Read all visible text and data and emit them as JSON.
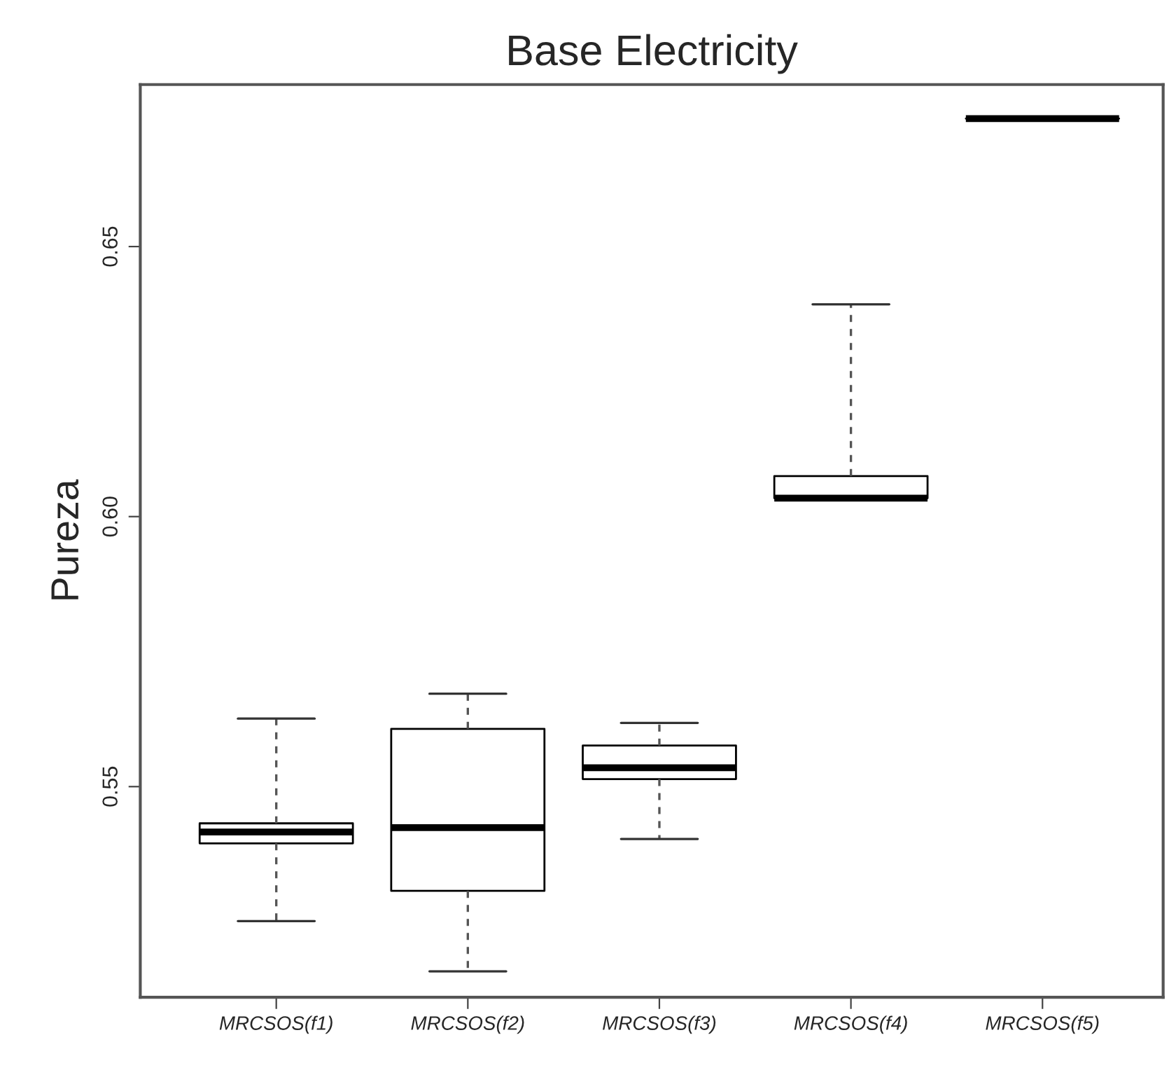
{
  "chart_data": {
    "type": "box",
    "title": "Base Electricity",
    "ylabel": "Pureza",
    "categories": [
      "MRCSOS(f1)",
      "MRCSOS(f2)",
      "MRCSOS(f3)",
      "MRCSOS(f4)",
      "MRCSOS(f5)"
    ],
    "boxes": [
      {
        "low": 0.5251,
        "q1": 0.5395,
        "median": 0.5416,
        "q3": 0.5432,
        "high": 0.5626
      },
      {
        "low": 0.5158,
        "q1": 0.5307,
        "median": 0.5424,
        "q3": 0.5607,
        "high": 0.5672
      },
      {
        "low": 0.5403,
        "q1": 0.5514,
        "median": 0.5535,
        "q3": 0.5576,
        "high": 0.5618
      },
      {
        "low": 0.6034,
        "q1": 0.6034,
        "median": 0.6034,
        "q3": 0.6075,
        "high": 0.6393
      },
      {
        "low": 0.6737,
        "q1": 0.6737,
        "median": 0.6737,
        "q3": 0.6737,
        "high": 0.6737
      }
    ],
    "ylim": [
      0.511,
      0.68
    ],
    "yticks": [
      0.55,
      {
        "value": 0.6,
        "label": "0.60"
      },
      0.65
    ],
    "grid": false
  }
}
